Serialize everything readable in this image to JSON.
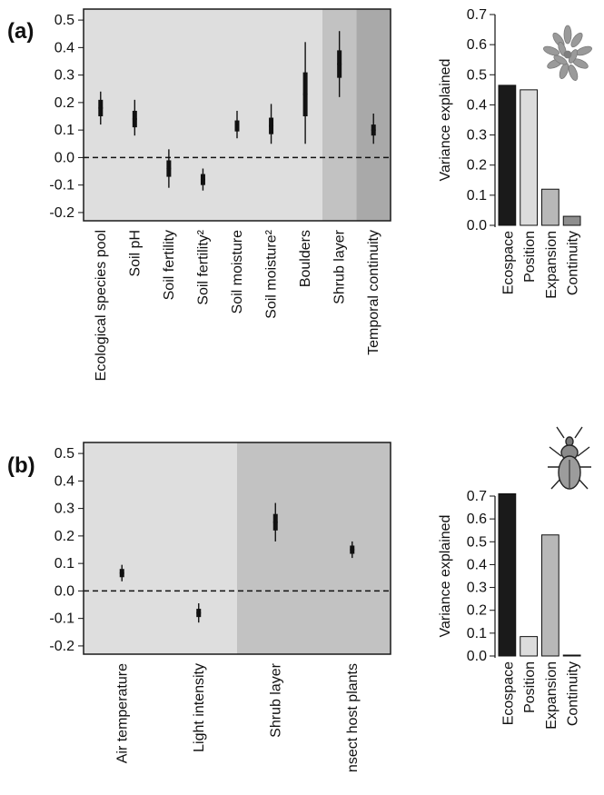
{
  "colors": {
    "band_light": "#dedede",
    "band_mid": "#c2c2c2",
    "band_dark": "#a9a9a9",
    "frame": "#1a1a1a",
    "marker": "#111111",
    "bar_ecospace": "#1a1a1a",
    "bar_position": "#dcdcdc",
    "bar_expansion": "#b8b8b8",
    "bar_continuity": "#8e8e8e"
  },
  "icons": {
    "panel_a": "plant-icon",
    "panel_b": "beetle-icon"
  },
  "chart_data": [
    {
      "panel": "(a)",
      "type": "scatter",
      "subtype": "coefficient plot with 50% (thick) and 95% (thin) intervals",
      "categories": [
        "Ecological species pool",
        "Soil pH",
        "Soil fertility",
        "Soil fertility²",
        "Soil moisture",
        "Soil moisture²",
        "Boulders",
        "Shrub layer",
        "Temporal continuity"
      ],
      "band_groups": [
        "light",
        "light",
        "light",
        "light",
        "light",
        "light",
        "light",
        "mid",
        "dark"
      ],
      "estimates": [
        0.18,
        0.14,
        -0.04,
        -0.08,
        0.115,
        0.115,
        0.23,
        0.34,
        0.1
      ],
      "inner_interval": [
        [
          0.15,
          0.21
        ],
        [
          0.11,
          0.17
        ],
        [
          -0.07,
          -0.01
        ],
        [
          -0.1,
          -0.06
        ],
        [
          0.095,
          0.135
        ],
        [
          0.085,
          0.145
        ],
        [
          0.15,
          0.31
        ],
        [
          0.29,
          0.39
        ],
        [
          0.08,
          0.12
        ]
      ],
      "outer_interval": [
        [
          0.12,
          0.24
        ],
        [
          0.08,
          0.21
        ],
        [
          -0.11,
          0.03
        ],
        [
          -0.12,
          -0.04
        ],
        [
          0.07,
          0.17
        ],
        [
          0.05,
          0.195
        ],
        [
          0.05,
          0.42
        ],
        [
          0.22,
          0.46
        ],
        [
          0.05,
          0.16
        ]
      ],
      "yticks": [
        "0.5",
        "0.4",
        "0.3",
        "0.2",
        "0.1",
        "0.0",
        "-0.1",
        "-0.2"
      ],
      "ylim": [
        -0.23,
        0.54
      ],
      "reference_line": 0.0
    },
    {
      "panel": "(a)",
      "type": "bar",
      "categories": [
        "Ecospace",
        "Position",
        "Expansion",
        "Continuity"
      ],
      "values": [
        0.465,
        0.45,
        0.12,
        0.03
      ],
      "ylabel": "Variance explained",
      "yticks": [
        "0.7",
        "0.6",
        "0.5",
        "0.4",
        "0.3",
        "0.2",
        "0.1",
        "0.0"
      ],
      "ylim": [
        0,
        0.7
      ]
    },
    {
      "panel": "(b)",
      "type": "scatter",
      "subtype": "coefficient plot with 50% (thick) and 95% (thin) intervals",
      "categories": [
        "Air temperature",
        "Light intensity",
        "Shrub layer",
        "nsect host plants"
      ],
      "band_groups": [
        "light",
        "light",
        "mid",
        "mid"
      ],
      "estimates": [
        0.065,
        -0.08,
        0.25,
        0.15
      ],
      "inner_interval": [
        [
          0.05,
          0.08
        ],
        [
          -0.095,
          -0.065
        ],
        [
          0.22,
          0.28
        ],
        [
          0.135,
          0.165
        ]
      ],
      "outer_interval": [
        [
          0.035,
          0.095
        ],
        [
          -0.115,
          -0.045
        ],
        [
          0.18,
          0.32
        ],
        [
          0.12,
          0.18
        ]
      ],
      "yticks": [
        "0.5",
        "0.4",
        "0.3",
        "0.2",
        "0.1",
        "0.0",
        "-0.1",
        "-0.2"
      ],
      "ylim": [
        -0.23,
        0.54
      ],
      "reference_line": 0.0
    },
    {
      "panel": "(b)",
      "type": "bar",
      "categories": [
        "Ecospace",
        "Position",
        "Expansion",
        "Continuity"
      ],
      "values": [
        0.71,
        0.085,
        0.53,
        0.0
      ],
      "ylabel": "Variance explained",
      "yticks": [
        "0.7",
        "0.6",
        "0.5",
        "0.4",
        "0.3",
        "0.2",
        "0.1",
        "0.0"
      ],
      "ylim": [
        0,
        0.7
      ]
    }
  ]
}
